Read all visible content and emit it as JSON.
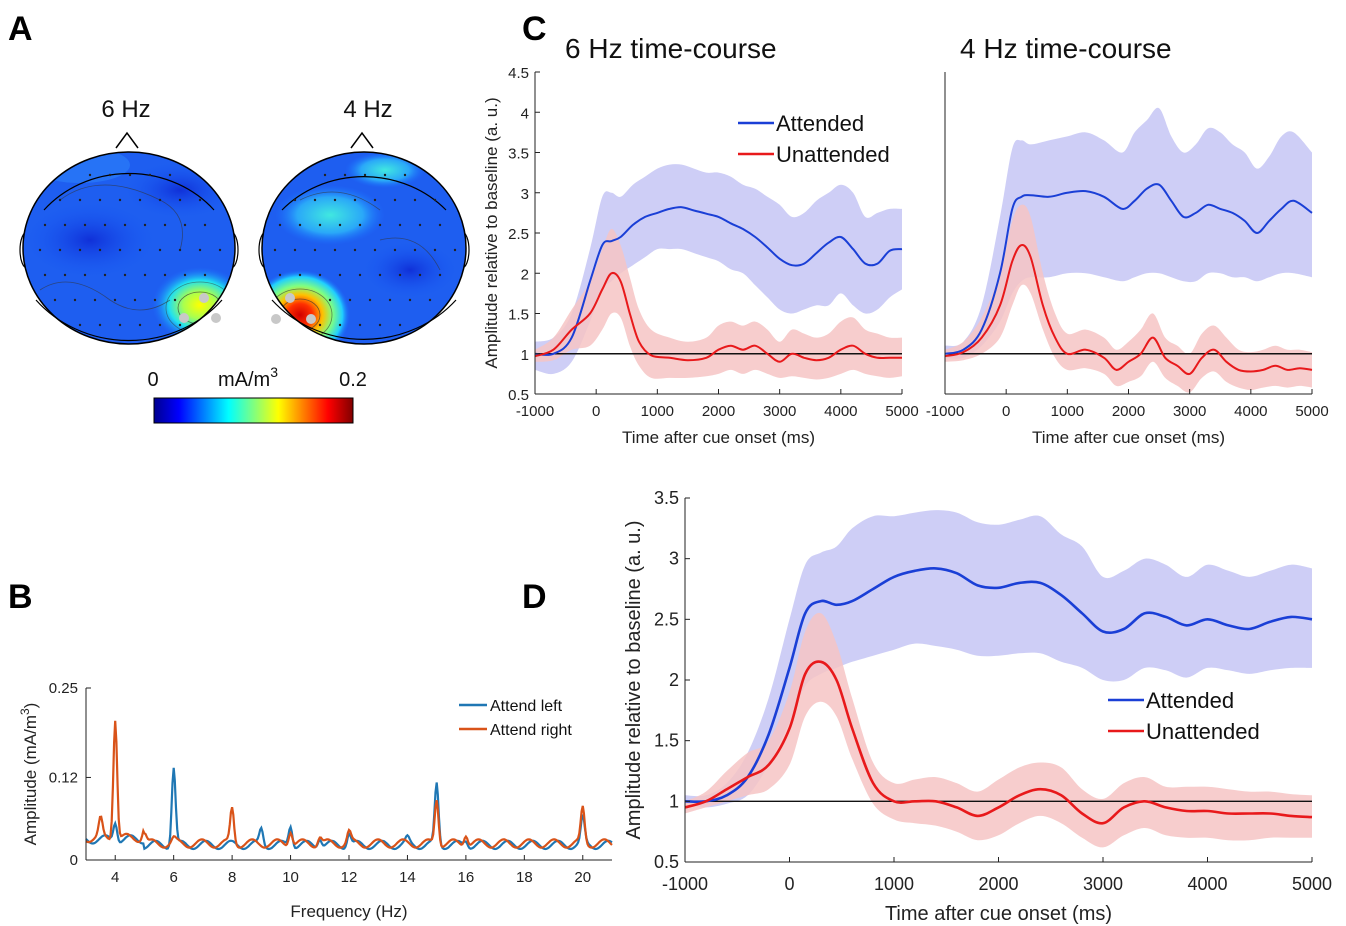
{
  "panel_letters": {
    "a": "A",
    "b": "B",
    "c": "C",
    "d": "D"
  },
  "panel_a": {
    "maps": [
      {
        "label": "6 Hz",
        "hotspot": "right-posterior",
        "peak": 0.14
      },
      {
        "label": "4 Hz",
        "hotspot": "left-posterior",
        "peak": 0.19
      }
    ],
    "colorbar": {
      "min_label": "0",
      "max_label": "0.2",
      "unit": "mA/m",
      "unit_sup": "3",
      "colormap": "jet"
    }
  },
  "chart_data": [
    {
      "id": "B",
      "type": "line",
      "title": "",
      "xlabel": "Frequency (Hz)",
      "ylabel": "Amplitude (mA/m",
      "ylabel_sup": "3",
      "ylabel_close": ")",
      "xlim": [
        3,
        21
      ],
      "ylim": [
        0,
        0.25
      ],
      "xticks": [
        4,
        6,
        8,
        10,
        12,
        14,
        16,
        18,
        20
      ],
      "yticks": [
        0,
        0.12,
        0.25
      ],
      "ytick_labels": [
        "0",
        "0.12",
        "0.25"
      ],
      "legend_position": "top-right",
      "series": [
        {
          "name": "Attend left",
          "color": "#1f77b4",
          "baseline": 0.022,
          "peaks": [
            [
              4,
              0.05
            ],
            [
              6,
              0.135
            ],
            [
              9,
              0.045
            ],
            [
              10,
              0.052
            ],
            [
              11,
              0.035
            ],
            [
              12,
              0.04
            ],
            [
              14,
              0.03
            ],
            [
              15,
              0.11
            ],
            [
              16,
              0.03
            ],
            [
              20,
              0.06
            ]
          ]
        },
        {
          "name": "Attend right",
          "color": "#d95319",
          "baseline": 0.024,
          "peaks": [
            [
              3.5,
              0.05
            ],
            [
              4,
              0.2
            ],
            [
              5,
              0.04
            ],
            [
              6,
              0.03
            ],
            [
              8,
              0.075
            ],
            [
              10,
              0.045
            ],
            [
              11,
              0.035
            ],
            [
              12,
              0.04
            ],
            [
              15,
              0.09
            ],
            [
              16,
              0.04
            ],
            [
              20,
              0.075
            ]
          ]
        }
      ]
    },
    {
      "id": "C1",
      "type": "line",
      "title": "6 Hz time-course",
      "xlabel": "Time after cue onset (ms)",
      "ylabel": "Amplitude relative to baseline (a. u.)",
      "xlim": [
        -1000,
        5000
      ],
      "ylim": [
        0.5,
        4.5
      ],
      "xticks": [
        -1000,
        0,
        1000,
        2000,
        3000,
        4000,
        5000
      ],
      "yticks": [
        0.5,
        1,
        1.5,
        2,
        2.5,
        3,
        3.5,
        4,
        4.5
      ],
      "baseline": 1,
      "legend_position": "top-right",
      "series": [
        {
          "name": "Attended",
          "color": "#1a3fd6",
          "band": "#c6c6f5",
          "x": [
            -1000,
            -700,
            -400,
            -100,
            100,
            250,
            400,
            600,
            800,
            1000,
            1200,
            1400,
            1600,
            1800,
            2000,
            2200,
            2400,
            2600,
            2800,
            3000,
            3200,
            3400,
            3600,
            3800,
            4000,
            4200,
            4400,
            4600,
            4800,
            5000
          ],
          "y": [
            1.0,
            1.0,
            1.2,
            1.9,
            2.35,
            2.4,
            2.45,
            2.6,
            2.7,
            2.75,
            2.8,
            2.82,
            2.78,
            2.74,
            2.7,
            2.62,
            2.55,
            2.45,
            2.32,
            2.18,
            2.1,
            2.12,
            2.25,
            2.38,
            2.45,
            2.3,
            2.12,
            2.12,
            2.28,
            2.3
          ],
          "lower": [
            0.8,
            0.75,
            0.9,
            1.4,
            1.8,
            1.9,
            2.0,
            2.1,
            2.2,
            2.3,
            2.3,
            2.3,
            2.25,
            2.2,
            2.15,
            2.05,
            2.0,
            1.85,
            1.7,
            1.55,
            1.5,
            1.55,
            1.6,
            1.6,
            1.75,
            1.6,
            1.5,
            1.55,
            1.7,
            1.8
          ],
          "upper": [
            1.15,
            1.2,
            1.5,
            2.3,
            2.95,
            3.0,
            2.95,
            3.1,
            3.2,
            3.3,
            3.35,
            3.35,
            3.3,
            3.25,
            3.25,
            3.2,
            3.1,
            3.05,
            2.95,
            2.85,
            2.7,
            2.75,
            2.9,
            3.0,
            3.1,
            3.0,
            2.7,
            2.75,
            2.8,
            2.8
          ]
        },
        {
          "name": "Unattended",
          "color": "#e8191b",
          "band": "#f6c4c4",
          "x": [
            -1000,
            -700,
            -400,
            -100,
            100,
            250,
            400,
            550,
            700,
            900,
            1200,
            1500,
            1800,
            2000,
            2200,
            2400,
            2600,
            2800,
            3000,
            3200,
            3400,
            3600,
            3800,
            4000,
            4200,
            4400,
            4600,
            4800,
            5000
          ],
          "y": [
            0.97,
            1.05,
            1.3,
            1.5,
            1.8,
            2.0,
            1.9,
            1.5,
            1.15,
            0.98,
            0.95,
            0.92,
            0.95,
            1.05,
            1.1,
            1.05,
            1.1,
            1.0,
            0.9,
            1.0,
            0.95,
            0.92,
            0.95,
            1.05,
            1.1,
            1.0,
            0.95,
            0.95,
            0.95
          ],
          "lower": [
            0.9,
            0.92,
            1.05,
            1.1,
            1.3,
            1.5,
            1.45,
            1.1,
            0.85,
            0.7,
            0.7,
            0.7,
            0.72,
            0.75,
            0.8,
            0.75,
            0.8,
            0.75,
            0.7,
            0.72,
            0.7,
            0.68,
            0.7,
            0.75,
            0.8,
            0.75,
            0.72,
            0.7,
            0.72
          ],
          "upper": [
            1.05,
            1.2,
            1.55,
            1.9,
            2.3,
            2.55,
            2.35,
            1.95,
            1.55,
            1.3,
            1.2,
            1.15,
            1.2,
            1.35,
            1.4,
            1.35,
            1.4,
            1.3,
            1.15,
            1.3,
            1.25,
            1.2,
            1.25,
            1.4,
            1.45,
            1.3,
            1.25,
            1.2,
            1.2
          ]
        }
      ]
    },
    {
      "id": "C2",
      "type": "line",
      "title": "4 Hz time-course",
      "xlabel": "Time after cue onset (ms)",
      "ylabel": "",
      "xlim": [
        -1000,
        5000
      ],
      "ylim": [
        0.5,
        4.5
      ],
      "xticks": [
        -1000,
        0,
        1000,
        2000,
        3000,
        4000,
        5000
      ],
      "baseline": 1,
      "series": [
        {
          "name": "Attended",
          "color": "#1a3fd6",
          "band": "#c6c6f5",
          "x": [
            -1000,
            -700,
            -400,
            -100,
            100,
            250,
            400,
            700,
            1000,
            1300,
            1600,
            1900,
            2100,
            2300,
            2500,
            2700,
            2900,
            3100,
            3300,
            3500,
            3700,
            3900,
            4100,
            4300,
            4500,
            4700,
            5000
          ],
          "y": [
            1.0,
            1.05,
            1.3,
            2.0,
            2.8,
            2.95,
            2.97,
            2.95,
            3.0,
            3.02,
            2.95,
            2.8,
            2.9,
            3.05,
            3.1,
            2.9,
            2.7,
            2.75,
            2.85,
            2.8,
            2.75,
            2.65,
            2.5,
            2.65,
            2.8,
            2.9,
            2.75
          ],
          "lower": [
            0.95,
            0.95,
            1.1,
            1.4,
            1.75,
            1.9,
            1.95,
            1.95,
            2.0,
            2.0,
            1.95,
            1.9,
            1.95,
            2.0,
            2.0,
            1.95,
            1.9,
            1.9,
            2.0,
            2.0,
            1.95,
            1.95,
            1.9,
            1.95,
            2.0,
            2.0,
            1.95
          ],
          "upper": [
            1.1,
            1.15,
            1.6,
            2.7,
            3.55,
            3.65,
            3.6,
            3.65,
            3.7,
            3.75,
            3.65,
            3.5,
            3.75,
            3.9,
            4.05,
            3.7,
            3.5,
            3.6,
            3.8,
            3.75,
            3.6,
            3.5,
            3.3,
            3.45,
            3.7,
            3.75,
            3.5
          ]
        },
        {
          "name": "Unattended",
          "color": "#e8191b",
          "band": "#f6c4c4",
          "x": [
            -1000,
            -700,
            -400,
            -100,
            100,
            250,
            400,
            600,
            800,
            1000,
            1300,
            1600,
            1800,
            2000,
            2200,
            2400,
            2600,
            2800,
            3000,
            3200,
            3400,
            3600,
            3800,
            4000,
            4200,
            4400,
            4600,
            4800,
            5000
          ],
          "y": [
            0.97,
            1.02,
            1.2,
            1.6,
            2.15,
            2.35,
            2.2,
            1.6,
            1.2,
            1.0,
            1.05,
            0.95,
            0.8,
            0.9,
            1.0,
            1.2,
            0.95,
            0.85,
            0.75,
            0.95,
            1.05,
            0.9,
            0.8,
            0.78,
            0.8,
            0.85,
            0.8,
            0.82,
            0.8
          ],
          "lower": [
            0.9,
            0.92,
            1.0,
            1.2,
            1.6,
            1.85,
            1.75,
            1.3,
            0.95,
            0.8,
            0.82,
            0.75,
            0.6,
            0.65,
            0.72,
            0.9,
            0.7,
            0.6,
            0.52,
            0.7,
            0.78,
            0.65,
            0.58,
            0.55,
            0.58,
            0.6,
            0.58,
            0.6,
            0.58
          ],
          "upper": [
            1.05,
            1.15,
            1.45,
            2.0,
            2.65,
            2.85,
            2.7,
            2.0,
            1.5,
            1.25,
            1.3,
            1.2,
            1.05,
            1.15,
            1.3,
            1.5,
            1.2,
            1.1,
            1.0,
            1.25,
            1.35,
            1.2,
            1.05,
            1.02,
            1.05,
            1.1,
            1.05,
            1.05,
            1.02
          ]
        }
      ]
    },
    {
      "id": "D",
      "type": "line",
      "title": "",
      "xlabel": "Time after cue onset (ms)",
      "ylabel": "Amplitude relative to baseline (a. u.)",
      "xlim": [
        -1000,
        5000
      ],
      "ylim": [
        0.5,
        3.5
      ],
      "xticks": [
        -1000,
        0,
        1000,
        2000,
        3000,
        4000,
        5000
      ],
      "yticks": [
        0.5,
        1,
        1.5,
        2,
        2.5,
        3,
        3.5
      ],
      "baseline": 1,
      "legend_position": "bottom-right",
      "series": [
        {
          "name": "Attended",
          "color": "#1a3fd6",
          "band": "#c6c6f5",
          "x": [
            -1000,
            -800,
            -600,
            -400,
            -200,
            0,
            150,
            300,
            450,
            600,
            800,
            1000,
            1200,
            1400,
            1600,
            1800,
            2000,
            2200,
            2400,
            2600,
            2800,
            3000,
            3200,
            3400,
            3600,
            3800,
            4000,
            4200,
            4400,
            4600,
            4800,
            5000
          ],
          "y": [
            1.0,
            1.0,
            1.05,
            1.2,
            1.55,
            2.1,
            2.55,
            2.65,
            2.62,
            2.65,
            2.75,
            2.85,
            2.9,
            2.92,
            2.88,
            2.78,
            2.76,
            2.8,
            2.8,
            2.7,
            2.55,
            2.4,
            2.42,
            2.55,
            2.52,
            2.45,
            2.5,
            2.45,
            2.42,
            2.48,
            2.52,
            2.5
          ],
          "lower": [
            0.98,
            0.95,
            0.98,
            1.05,
            1.3,
            1.65,
            1.95,
            2.05,
            2.1,
            2.15,
            2.2,
            2.25,
            2.3,
            2.28,
            2.25,
            2.2,
            2.2,
            2.22,
            2.22,
            2.15,
            2.1,
            2.0,
            2.0,
            2.1,
            2.08,
            2.02,
            2.1,
            2.08,
            2.05,
            2.08,
            2.1,
            2.1
          ],
          "upper": [
            1.05,
            1.05,
            1.15,
            1.4,
            1.85,
            2.5,
            2.95,
            3.05,
            3.1,
            3.25,
            3.35,
            3.35,
            3.38,
            3.4,
            3.38,
            3.3,
            3.28,
            3.32,
            3.35,
            3.2,
            3.1,
            2.85,
            2.9,
            3.0,
            2.95,
            2.85,
            2.95,
            2.9,
            2.85,
            2.9,
            2.95,
            2.92
          ]
        },
        {
          "name": "Unattended",
          "color": "#e8191b",
          "band": "#f6c4c4",
          "x": [
            -1000,
            -800,
            -600,
            -400,
            -200,
            0,
            150,
            300,
            450,
            600,
            800,
            1000,
            1200,
            1400,
            1600,
            1800,
            2000,
            2200,
            2400,
            2600,
            2800,
            3000,
            3200,
            3400,
            3600,
            3800,
            4000,
            4200,
            4400,
            4600,
            4800,
            5000
          ],
          "y": [
            0.95,
            1.0,
            1.1,
            1.2,
            1.3,
            1.6,
            2.05,
            2.15,
            2.0,
            1.6,
            1.15,
            1.0,
            1.0,
            1.0,
            0.95,
            0.88,
            0.95,
            1.05,
            1.1,
            1.05,
            0.9,
            0.82,
            0.95,
            1.0,
            0.95,
            0.92,
            0.92,
            0.9,
            0.9,
            0.9,
            0.88,
            0.87
          ],
          "lower": [
            0.9,
            0.95,
            1.0,
            1.05,
            1.1,
            1.3,
            1.7,
            1.82,
            1.7,
            1.35,
            0.98,
            0.85,
            0.82,
            0.8,
            0.75,
            0.68,
            0.72,
            0.82,
            0.88,
            0.82,
            0.7,
            0.62,
            0.72,
            0.78,
            0.72,
            0.7,
            0.7,
            0.68,
            0.68,
            0.7,
            0.7,
            0.7
          ],
          "upper": [
            1.0,
            1.08,
            1.25,
            1.4,
            1.5,
            1.9,
            2.4,
            2.55,
            2.3,
            1.85,
            1.32,
            1.15,
            1.18,
            1.2,
            1.15,
            1.08,
            1.18,
            1.28,
            1.32,
            1.28,
            1.1,
            1.02,
            1.15,
            1.2,
            1.12,
            1.12,
            1.12,
            1.1,
            1.08,
            1.08,
            1.06,
            1.05
          ]
        }
      ]
    }
  ],
  "colors": {
    "band_blue": "#c6c6f5",
    "band_red": "#f6c4c4"
  }
}
